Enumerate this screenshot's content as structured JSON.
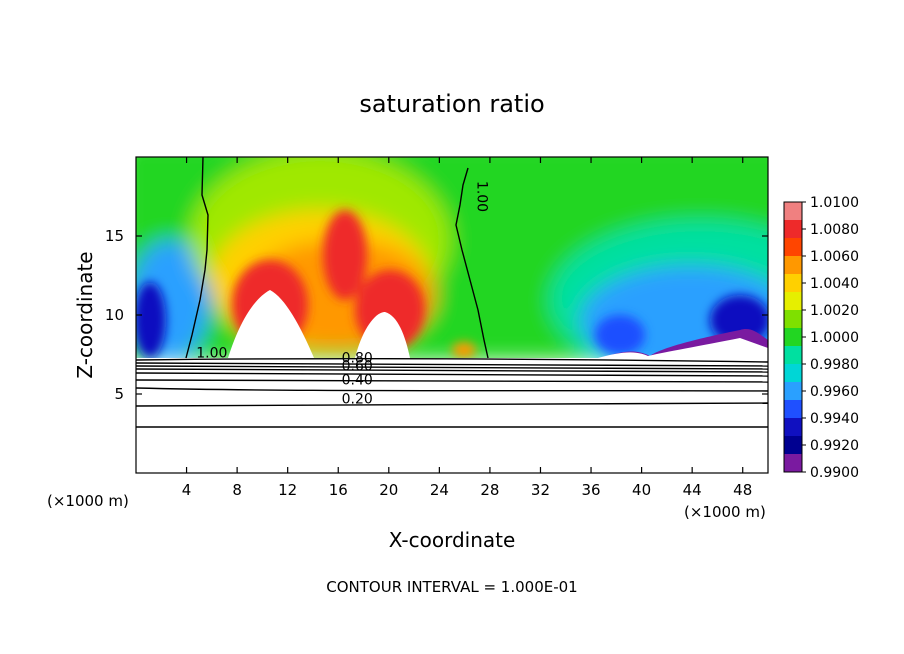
{
  "chart_data": {
    "type": "heatmap",
    "title": "saturation ratio",
    "xlabel": "X-coordinate",
    "ylabel": "Z-coordinate",
    "x_unit": "(×1000 m)",
    "xlim": [
      0,
      50
    ],
    "ylim": [
      0,
      20
    ],
    "x_ticks": [
      4,
      8,
      12,
      16,
      20,
      24,
      28,
      32,
      36,
      40,
      44,
      48
    ],
    "y_ticks": [
      5,
      10,
      15
    ],
    "footer": "CONTOUR INTERVAL = 1.000E-01",
    "colorbar": {
      "levels": [
        "1.0100",
        "1.0080",
        "1.0060",
        "1.0040",
        "1.0020",
        "1.0000",
        "0.9980",
        "0.9960",
        "0.9940",
        "0.9920",
        "0.9900"
      ],
      "colors": [
        "#f08080",
        "#ee2a2a",
        "#ff4500",
        "#ff9800",
        "#ffd000",
        "#e6ef00",
        "#7fe000",
        "#22d622",
        "#00e0a0",
        "#00d6d6",
        "#2aa0ff",
        "#1f50ff",
        "#1010c0",
        "#000090",
        "#7a1aa0"
      ]
    },
    "contour_labels": [
      {
        "text": "1.00",
        "x": 6.0,
        "y": 7.3
      },
      {
        "text": "1.00",
        "x": 27.0,
        "y": 17.5
      },
      {
        "text": "0.80",
        "x": 17.5,
        "y": 7.0
      },
      {
        "text": "0.60",
        "x": 17.5,
        "y": 6.5
      },
      {
        "text": "0.40",
        "x": 17.5,
        "y": 5.6
      },
      {
        "text": "0.20",
        "x": 17.5,
        "y": 4.4
      }
    ]
  }
}
